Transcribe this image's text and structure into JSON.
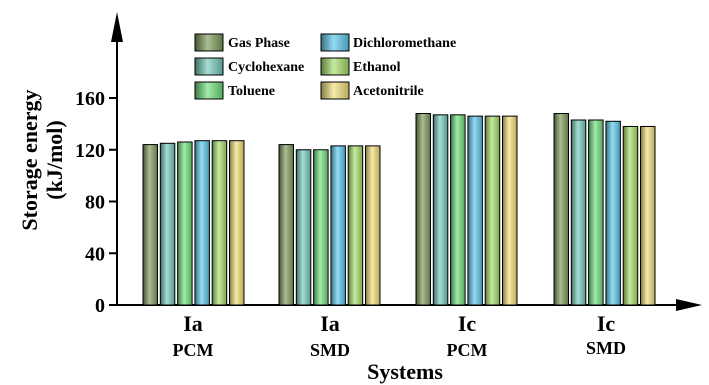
{
  "chart_data": {
    "type": "bar",
    "title": "",
    "xlabel": "Systems",
    "ylabel_line1": "Storage energy",
    "ylabel_line2": "(kJ/mol)",
    "ylim": [
      0,
      160
    ],
    "yticks": [
      0,
      40,
      80,
      120,
      160
    ],
    "grid": false,
    "legend_position": "top-center",
    "categories": [
      {
        "name": "Ia",
        "method": "PCM"
      },
      {
        "name": "Ia",
        "method": "SMD"
      },
      {
        "name": "Ic",
        "method": "PCM"
      },
      {
        "name": "Ic",
        "method": "SMD"
      }
    ],
    "series": [
      {
        "name": "Gas Phase",
        "color": "#7e9a5a",
        "values": [
          124,
          124,
          148,
          148
        ]
      },
      {
        "name": "Cyclohexane",
        "color": "#74cabb",
        "values": [
          125,
          120,
          147,
          143
        ]
      },
      {
        "name": "Toluene",
        "color": "#6fe07c",
        "values": [
          126,
          120,
          147,
          143
        ]
      },
      {
        "name": "Dichloromethane",
        "color": "#5cc8ee",
        "values": [
          127,
          123,
          146,
          142
        ]
      },
      {
        "name": "Ethanol",
        "color": "#a8df6a",
        "values": [
          127,
          123,
          146,
          138
        ]
      },
      {
        "name": "Acetonitrile",
        "color": "#f2e07a",
        "values": [
          127,
          123,
          146,
          138
        ]
      }
    ]
  }
}
